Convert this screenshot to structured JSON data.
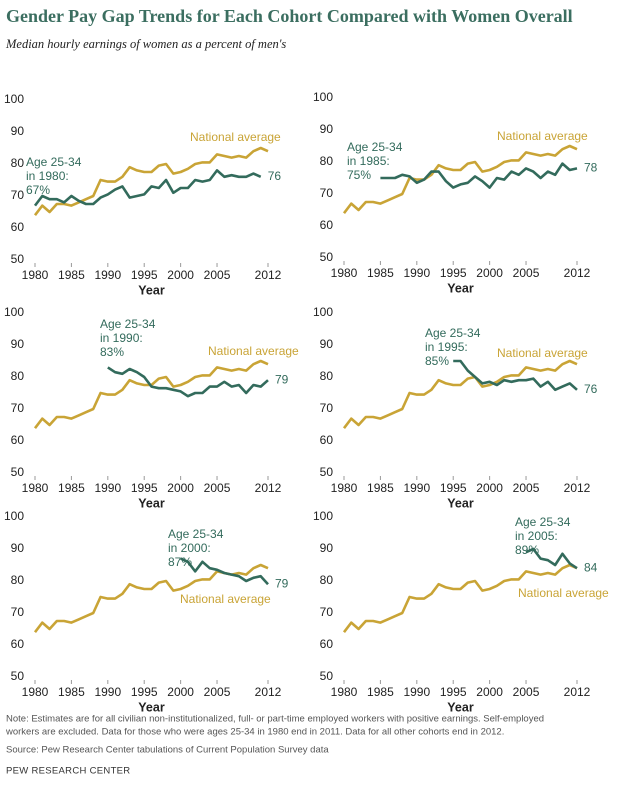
{
  "title": "Gender Pay Gap Trends for Each Cohort Compared with Women Overall",
  "subtitle": "Median hourly earnings of women as a percent of men's",
  "note": [
    "Note: Estimates are for all civilian non-institutionalized, full- or part-time employed workers with positive earnings. Self-employed",
    "workers are excluded. Data for those who were ages 25-34 in 1980 end in 2011. Data for all other cohorts end in 2012."
  ],
  "source": "Source: Pew Research Center tabulations of Current Population Survey data",
  "footer": "PEW RESEARCH CENTER",
  "chart_data": [
    {
      "type": "line",
      "x_label": "Year",
      "annotation": [
        "Age 25-34",
        "in 1980:",
        "67%"
      ],
      "x": [
        1980,
        1981,
        1982,
        1983,
        1984,
        1985,
        1986,
        1987,
        1988,
        1989,
        1990,
        1991,
        1992,
        1993,
        1994,
        1995,
        1996,
        1997,
        1998,
        1999,
        2000,
        2001,
        2002,
        2003,
        2004,
        2005,
        2006,
        2007,
        2008,
        2009,
        2010,
        2011,
        2012
      ],
      "xlim": [
        1980,
        2012
      ],
      "xticks": [
        1980,
        1985,
        1990,
        1995,
        2000,
        2005,
        2012
      ],
      "ylim": [
        50,
        100
      ],
      "yticks": [
        50,
        60,
        70,
        80,
        90,
        100
      ],
      "series": [
        {
          "name": "National average",
          "color": "#c9a436",
          "values": [
            64,
            67,
            65,
            67.5,
            67.5,
            67,
            68,
            69,
            70,
            75,
            74.5,
            74.5,
            76,
            79,
            78,
            77.5,
            77.5,
            79.5,
            80,
            77,
            77.5,
            78.5,
            80,
            80.5,
            80.5,
            83,
            82.5,
            82,
            82.5,
            82,
            84,
            85,
            84
          ]
        },
        {
          "color": "#336b5c",
          "values": [
            67,
            70,
            69,
            69,
            68,
            70,
            68.5,
            67.5,
            67.5,
            69.5,
            70.5,
            72,
            73,
            69.5,
            70,
            70.5,
            73,
            72.5,
            75,
            71,
            72.5,
            72.5,
            75,
            74.5,
            75,
            78,
            76,
            76.5,
            76,
            76,
            77,
            76,
            null
          ]
        }
      ]
    },
    {
      "type": "line",
      "x_label": "Year",
      "annotation": [
        "Age 25-34",
        "in 1985:",
        "75%"
      ],
      "x": [
        1980,
        1981,
        1982,
        1983,
        1984,
        1985,
        1986,
        1987,
        1988,
        1989,
        1990,
        1991,
        1992,
        1993,
        1994,
        1995,
        1996,
        1997,
        1998,
        1999,
        2000,
        2001,
        2002,
        2003,
        2004,
        2005,
        2006,
        2007,
        2008,
        2009,
        2010,
        2011,
        2012
      ],
      "xlim": [
        1980,
        2012
      ],
      "xticks": [
        1980,
        1985,
        1990,
        1995,
        2000,
        2005,
        2012
      ],
      "ylim": [
        50,
        100
      ],
      "yticks": [
        50,
        60,
        70,
        80,
        90,
        100
      ],
      "series": [
        {
          "name": "National average",
          "color": "#c9a436",
          "values": [
            64,
            67,
            65,
            67.5,
            67.5,
            67,
            68,
            69,
            70,
            75,
            74.5,
            74.5,
            76,
            79,
            78,
            77.5,
            77.5,
            79.5,
            80,
            77,
            77.5,
            78.5,
            80,
            80.5,
            80.5,
            83,
            82.5,
            82,
            82.5,
            82,
            84,
            85,
            84
          ]
        },
        {
          "color": "#336b5c",
          "values": [
            null,
            null,
            null,
            null,
            null,
            75,
            75,
            75,
            76,
            75.5,
            73.5,
            74.5,
            77,
            77,
            74,
            72,
            73,
            73.5,
            75.5,
            74,
            72,
            75,
            74.5,
            77,
            76,
            78,
            77,
            75,
            77,
            76,
            79.5,
            77.5,
            78
          ]
        }
      ]
    },
    {
      "type": "line",
      "x_label": "Year",
      "annotation": [
        "Age 25-34",
        "in 1990:",
        "83%"
      ],
      "x": [
        1980,
        1981,
        1982,
        1983,
        1984,
        1985,
        1986,
        1987,
        1988,
        1989,
        1990,
        1991,
        1992,
        1993,
        1994,
        1995,
        1996,
        1997,
        1998,
        1999,
        2000,
        2001,
        2002,
        2003,
        2004,
        2005,
        2006,
        2007,
        2008,
        2009,
        2010,
        2011,
        2012
      ],
      "xlim": [
        1980,
        2012
      ],
      "xticks": [
        1980,
        1985,
        1990,
        1995,
        2000,
        2005,
        2012
      ],
      "ylim": [
        50,
        100
      ],
      "yticks": [
        50,
        60,
        70,
        80,
        90,
        100
      ],
      "series": [
        {
          "name": "National average",
          "color": "#c9a436",
          "values": [
            64,
            67,
            65,
            67.5,
            67.5,
            67,
            68,
            69,
            70,
            75,
            74.5,
            74.5,
            76,
            79,
            78,
            77.5,
            77.5,
            79.5,
            80,
            77,
            77.5,
            78.5,
            80,
            80.5,
            80.5,
            83,
            82.5,
            82,
            82.5,
            82,
            84,
            85,
            84
          ]
        },
        {
          "color": "#336b5c",
          "values": [
            null,
            null,
            null,
            null,
            null,
            null,
            null,
            null,
            null,
            null,
            83,
            81.5,
            81,
            82.5,
            81.5,
            80,
            77,
            76.5,
            76.5,
            76,
            75.5,
            74,
            75,
            75,
            77,
            77,
            78.5,
            77,
            77.5,
            75,
            77.5,
            77,
            79
          ]
        }
      ]
    },
    {
      "type": "line",
      "x_label": "Year",
      "annotation": [
        "Age 25-34",
        "in 1995:",
        "85%"
      ],
      "x": [
        1980,
        1981,
        1982,
        1983,
        1984,
        1985,
        1986,
        1987,
        1988,
        1989,
        1990,
        1991,
        1992,
        1993,
        1994,
        1995,
        1996,
        1997,
        1998,
        1999,
        2000,
        2001,
        2002,
        2003,
        2004,
        2005,
        2006,
        2007,
        2008,
        2009,
        2010,
        2011,
        2012
      ],
      "xlim": [
        1980,
        2012
      ],
      "xticks": [
        1980,
        1985,
        1990,
        1995,
        2000,
        2005,
        2012
      ],
      "ylim": [
        50,
        100
      ],
      "yticks": [
        50,
        60,
        70,
        80,
        90,
        100
      ],
      "series": [
        {
          "name": "National average",
          "color": "#c9a436",
          "values": [
            64,
            67,
            65,
            67.5,
            67.5,
            67,
            68,
            69,
            70,
            75,
            74.5,
            74.5,
            76,
            79,
            78,
            77.5,
            77.5,
            79.5,
            80,
            77,
            77.5,
            78.5,
            80,
            80.5,
            80.5,
            83,
            82.5,
            82,
            82.5,
            82,
            84,
            85,
            84
          ]
        },
        {
          "color": "#336b5c",
          "values": [
            null,
            null,
            null,
            null,
            null,
            null,
            null,
            null,
            null,
            null,
            null,
            null,
            null,
            null,
            null,
            85,
            85,
            82,
            80,
            78,
            78.5,
            77.5,
            79,
            78.5,
            79,
            79,
            79.5,
            77,
            78.5,
            76,
            77,
            78,
            76
          ]
        }
      ]
    },
    {
      "type": "line",
      "x_label": "Year",
      "annotation": [
        "Age 25-34",
        "in 2000:",
        "87%"
      ],
      "x": [
        1980,
        1981,
        1982,
        1983,
        1984,
        1985,
        1986,
        1987,
        1988,
        1989,
        1990,
        1991,
        1992,
        1993,
        1994,
        1995,
        1996,
        1997,
        1998,
        1999,
        2000,
        2001,
        2002,
        2003,
        2004,
        2005,
        2006,
        2007,
        2008,
        2009,
        2010,
        2011,
        2012
      ],
      "xlim": [
        1980,
        2012
      ],
      "xticks": [
        1980,
        1985,
        1990,
        1995,
        2000,
        2005,
        2012
      ],
      "ylim": [
        50,
        100
      ],
      "yticks": [
        50,
        60,
        70,
        80,
        90,
        100
      ],
      "series": [
        {
          "name": "National average",
          "color": "#c9a436",
          "values": [
            64,
            67,
            65,
            67.5,
            67.5,
            67,
            68,
            69,
            70,
            75,
            74.5,
            74.5,
            76,
            79,
            78,
            77.5,
            77.5,
            79.5,
            80,
            77,
            77.5,
            78.5,
            80,
            80.5,
            80.5,
            83,
            82.5,
            82,
            82.5,
            82,
            84,
            85,
            84
          ]
        },
        {
          "color": "#336b5c",
          "values": [
            null,
            null,
            null,
            null,
            null,
            null,
            null,
            null,
            null,
            null,
            null,
            null,
            null,
            null,
            null,
            null,
            null,
            null,
            null,
            null,
            87,
            86,
            83,
            86,
            84,
            83.5,
            82.5,
            82,
            81.5,
            80,
            81,
            81.5,
            79
          ]
        }
      ]
    },
    {
      "type": "line",
      "x_label": "Year",
      "annotation": [
        "Age 25-34",
        "in 2005:",
        "89%"
      ],
      "x": [
        1980,
        1981,
        1982,
        1983,
        1984,
        1985,
        1986,
        1987,
        1988,
        1989,
        1990,
        1991,
        1992,
        1993,
        1994,
        1995,
        1996,
        1997,
        1998,
        1999,
        2000,
        2001,
        2002,
        2003,
        2004,
        2005,
        2006,
        2007,
        2008,
        2009,
        2010,
        2011,
        2012
      ],
      "xlim": [
        1980,
        2012
      ],
      "xticks": [
        1980,
        1985,
        1990,
        1995,
        2000,
        2005,
        2012
      ],
      "ylim": [
        50,
        100
      ],
      "yticks": [
        50,
        60,
        70,
        80,
        90,
        100
      ],
      "series": [
        {
          "name": "National average",
          "color": "#c9a436",
          "values": [
            64,
            67,
            65,
            67.5,
            67.5,
            67,
            68,
            69,
            70,
            75,
            74.5,
            74.5,
            76,
            79,
            78,
            77.5,
            77.5,
            79.5,
            80,
            77,
            77.5,
            78.5,
            80,
            80.5,
            80.5,
            83,
            82.5,
            82,
            82.5,
            82,
            84,
            85,
            84
          ]
        },
        {
          "color": "#336b5c",
          "values": [
            null,
            null,
            null,
            null,
            null,
            null,
            null,
            null,
            null,
            null,
            null,
            null,
            null,
            null,
            null,
            null,
            null,
            null,
            null,
            null,
            null,
            null,
            null,
            null,
            null,
            89,
            90,
            87,
            86.5,
            85,
            88.5,
            85.5,
            84
          ]
        }
      ]
    }
  ]
}
